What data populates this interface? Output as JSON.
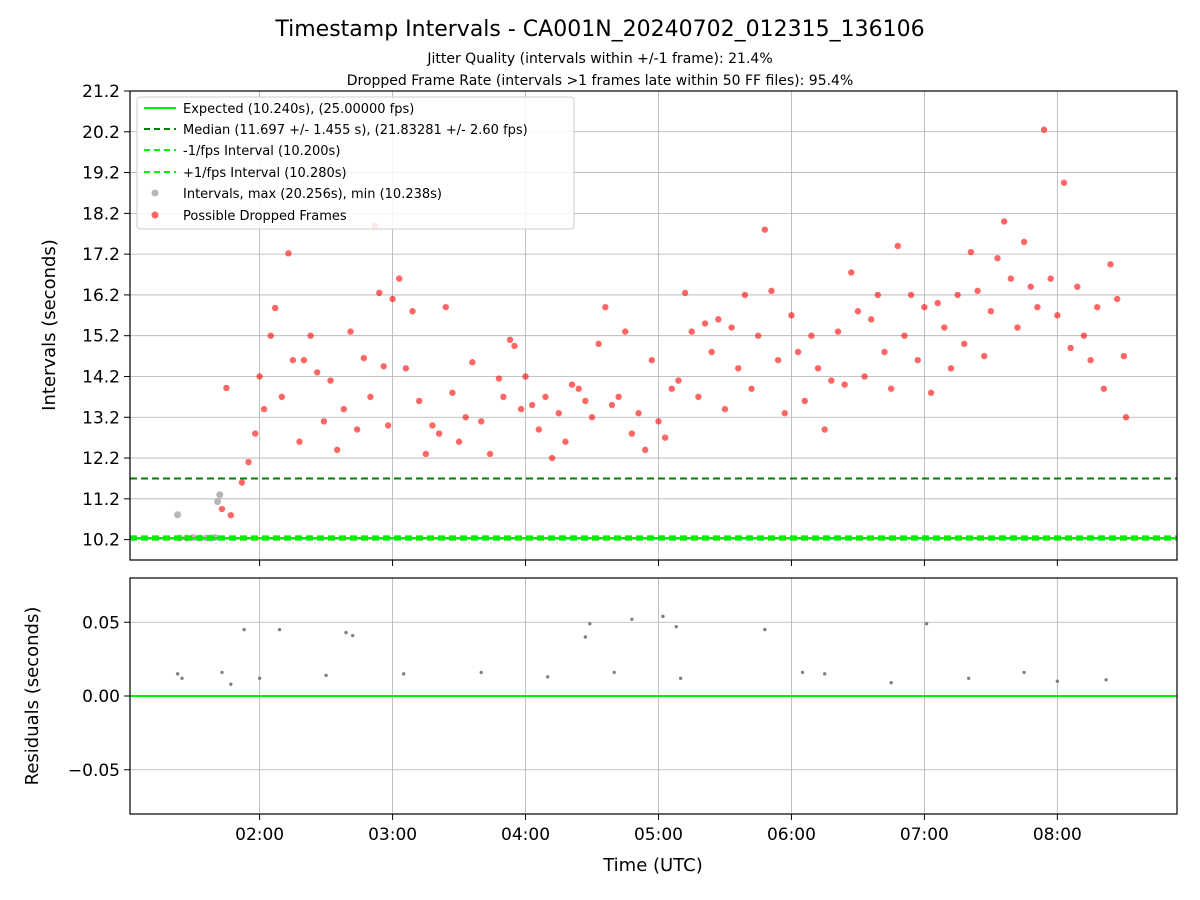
{
  "chart_data": [
    {
      "type": "scatter",
      "title": "Timestamp Intervals - CA001N_20240702_012315_136106",
      "subtitle_1": "Jitter Quality (intervals within +/-1 frame): 21.4%",
      "subtitle_2": "Dropped Frame Rate (intervals >1 frames late within 50 FF files): 95.4%",
      "xlabel": "",
      "ylabel": "Intervals (seconds)",
      "xlim": [
        "01:01:30",
        "08:54:00"
      ],
      "ylim": [
        9.7,
        21.2
      ],
      "yticks": [
        "10.2",
        "11.2",
        "12.2",
        "13.2",
        "14.2",
        "15.2",
        "16.2",
        "17.2",
        "18.2",
        "19.2",
        "20.2",
        "21.2"
      ],
      "grid": true,
      "legend_position": "upper-left",
      "legend": [
        "Expected (10.240s), (25.00000 fps)",
        "Median (11.697 +/- 1.455 s), (21.83281 +/- 2.60 fps)",
        "-1/fps Interval (10.200s)",
        "+1/fps Interval (10.280s)",
        "Intervals, max (20.256s), min (10.238s)",
        "Possible Dropped Frames"
      ],
      "reference_lines": [
        {
          "name": "Expected",
          "y": 10.24,
          "style": "solid",
          "color": "#00ee00"
        },
        {
          "name": "Median",
          "y": 11.697,
          "style": "dashed",
          "color": "#008000"
        },
        {
          "name": "-1/fps Interval",
          "y": 10.2,
          "style": "dashed",
          "color": "#00ee00"
        },
        {
          "name": "+1/fps Interval",
          "y": 10.28,
          "style": "dashed",
          "color": "#00ee00"
        }
      ],
      "series": [
        {
          "name": "Intervals, max (20.256s), min (10.238s)",
          "color": "#999999",
          "points": [
            {
              "x": "01:23",
              "y": 10.81
            },
            {
              "x": "01:24",
              "y": 10.24
            },
            {
              "x": "01:27",
              "y": 10.24
            },
            {
              "x": "01:30",
              "y": 10.25
            },
            {
              "x": "01:33",
              "y": 10.24
            },
            {
              "x": "01:36",
              "y": 10.24
            },
            {
              "x": "01:38",
              "y": 10.24
            },
            {
              "x": "01:40",
              "y": 10.25
            },
            {
              "x": "01:41",
              "y": 11.13
            },
            {
              "x": "01:42",
              "y": 11.3
            }
          ]
        },
        {
          "name": "Possible Dropped Frames",
          "color": "#ff0000",
          "points": [
            {
              "x": "01:45",
              "y": 13.92
            },
            {
              "x": "01:43",
              "y": 10.95
            },
            {
              "x": "01:47",
              "y": 10.8
            },
            {
              "x": "01:52",
              "y": 11.6
            },
            {
              "x": "01:55",
              "y": 12.1
            },
            {
              "x": "01:58",
              "y": 12.8
            },
            {
              "x": "02:00",
              "y": 14.2
            },
            {
              "x": "02:02",
              "y": 13.4
            },
            {
              "x": "02:05",
              "y": 15.2
            },
            {
              "x": "02:07",
              "y": 15.88
            },
            {
              "x": "02:10",
              "y": 13.7
            },
            {
              "x": "02:13",
              "y": 17.22
            },
            {
              "x": "02:15",
              "y": 14.6
            },
            {
              "x": "02:18",
              "y": 12.6
            },
            {
              "x": "02:20",
              "y": 14.6
            },
            {
              "x": "02:23",
              "y": 15.2
            },
            {
              "x": "02:26",
              "y": 14.3
            },
            {
              "x": "02:29",
              "y": 13.1
            },
            {
              "x": "02:32",
              "y": 14.1
            },
            {
              "x": "02:35",
              "y": 12.4
            },
            {
              "x": "02:38",
              "y": 13.4
            },
            {
              "x": "02:41",
              "y": 15.3
            },
            {
              "x": "02:44",
              "y": 12.9
            },
            {
              "x": "02:47",
              "y": 14.65
            },
            {
              "x": "02:50",
              "y": 13.7
            },
            {
              "x": "02:52",
              "y": 17.9
            },
            {
              "x": "02:54",
              "y": 16.25
            },
            {
              "x": "02:56",
              "y": 14.45
            },
            {
              "x": "02:58",
              "y": 13.0
            },
            {
              "x": "03:00",
              "y": 16.1
            },
            {
              "x": "03:03",
              "y": 16.6
            },
            {
              "x": "03:06",
              "y": 14.4
            },
            {
              "x": "03:09",
              "y": 15.8
            },
            {
              "x": "03:12",
              "y": 13.6
            },
            {
              "x": "03:15",
              "y": 12.3
            },
            {
              "x": "03:18",
              "y": 13.0
            },
            {
              "x": "03:21",
              "y": 12.8
            },
            {
              "x": "03:24",
              "y": 15.9
            },
            {
              "x": "03:27",
              "y": 13.8
            },
            {
              "x": "03:30",
              "y": 12.6
            },
            {
              "x": "03:33",
              "y": 13.2
            },
            {
              "x": "03:36",
              "y": 14.55
            },
            {
              "x": "03:40",
              "y": 13.1
            },
            {
              "x": "03:44",
              "y": 12.3
            },
            {
              "x": "03:48",
              "y": 14.15
            },
            {
              "x": "03:50",
              "y": 13.7
            },
            {
              "x": "03:53",
              "y": 15.1
            },
            {
              "x": "03:55",
              "y": 14.95
            },
            {
              "x": "03:58",
              "y": 13.4
            },
            {
              "x": "04:00",
              "y": 14.2
            },
            {
              "x": "04:03",
              "y": 13.5
            },
            {
              "x": "04:06",
              "y": 12.9
            },
            {
              "x": "04:09",
              "y": 13.7
            },
            {
              "x": "04:12",
              "y": 12.2
            },
            {
              "x": "04:15",
              "y": 13.3
            },
            {
              "x": "04:18",
              "y": 12.6
            },
            {
              "x": "04:21",
              "y": 14.0
            },
            {
              "x": "04:24",
              "y": 13.9
            },
            {
              "x": "04:27",
              "y": 13.6
            },
            {
              "x": "04:30",
              "y": 13.2
            },
            {
              "x": "04:33",
              "y": 15.0
            },
            {
              "x": "04:36",
              "y": 15.9
            },
            {
              "x": "04:39",
              "y": 13.5
            },
            {
              "x": "04:42",
              "y": 13.7
            },
            {
              "x": "04:45",
              "y": 15.3
            },
            {
              "x": "04:48",
              "y": 12.8
            },
            {
              "x": "04:51",
              "y": 13.3
            },
            {
              "x": "04:54",
              "y": 12.4
            },
            {
              "x": "04:57",
              "y": 14.6
            },
            {
              "x": "05:00",
              "y": 13.1
            },
            {
              "x": "05:03",
              "y": 12.7
            },
            {
              "x": "05:06",
              "y": 13.9
            },
            {
              "x": "05:09",
              "y": 14.1
            },
            {
              "x": "05:12",
              "y": 16.25
            },
            {
              "x": "05:15",
              "y": 15.3
            },
            {
              "x": "05:18",
              "y": 13.7
            },
            {
              "x": "05:21",
              "y": 15.5
            },
            {
              "x": "05:24",
              "y": 14.8
            },
            {
              "x": "05:27",
              "y": 15.6
            },
            {
              "x": "05:30",
              "y": 13.4
            },
            {
              "x": "05:33",
              "y": 15.4
            },
            {
              "x": "05:36",
              "y": 14.4
            },
            {
              "x": "05:39",
              "y": 16.2
            },
            {
              "x": "05:42",
              "y": 13.9
            },
            {
              "x": "05:45",
              "y": 15.2
            },
            {
              "x": "05:48",
              "y": 17.8
            },
            {
              "x": "05:51",
              "y": 16.3
            },
            {
              "x": "05:54",
              "y": 14.6
            },
            {
              "x": "05:57",
              "y": 13.3
            },
            {
              "x": "06:00",
              "y": 15.7
            },
            {
              "x": "06:03",
              "y": 14.8
            },
            {
              "x": "06:06",
              "y": 13.6
            },
            {
              "x": "06:09",
              "y": 15.2
            },
            {
              "x": "06:12",
              "y": 14.4
            },
            {
              "x": "06:15",
              "y": 12.9
            },
            {
              "x": "06:18",
              "y": 14.1
            },
            {
              "x": "06:21",
              "y": 15.3
            },
            {
              "x": "06:24",
              "y": 14.0
            },
            {
              "x": "06:27",
              "y": 16.75
            },
            {
              "x": "06:30",
              "y": 15.8
            },
            {
              "x": "06:33",
              "y": 14.2
            },
            {
              "x": "06:36",
              "y": 15.6
            },
            {
              "x": "06:39",
              "y": 16.2
            },
            {
              "x": "06:42",
              "y": 14.8
            },
            {
              "x": "06:45",
              "y": 13.9
            },
            {
              "x": "06:48",
              "y": 17.4
            },
            {
              "x": "06:51",
              "y": 15.2
            },
            {
              "x": "06:54",
              "y": 16.2
            },
            {
              "x": "06:57",
              "y": 14.6
            },
            {
              "x": "07:00",
              "y": 15.9
            },
            {
              "x": "07:03",
              "y": 13.8
            },
            {
              "x": "07:06",
              "y": 16.0
            },
            {
              "x": "07:09",
              "y": 15.4
            },
            {
              "x": "07:12",
              "y": 14.4
            },
            {
              "x": "07:15",
              "y": 16.2
            },
            {
              "x": "07:18",
              "y": 15.0
            },
            {
              "x": "07:21",
              "y": 17.25
            },
            {
              "x": "07:24",
              "y": 16.3
            },
            {
              "x": "07:27",
              "y": 14.7
            },
            {
              "x": "07:30",
              "y": 15.8
            },
            {
              "x": "07:33",
              "y": 17.1
            },
            {
              "x": "07:36",
              "y": 18.0
            },
            {
              "x": "07:39",
              "y": 16.6
            },
            {
              "x": "07:42",
              "y": 15.4
            },
            {
              "x": "07:45",
              "y": 17.5
            },
            {
              "x": "07:48",
              "y": 16.4
            },
            {
              "x": "07:51",
              "y": 15.9
            },
            {
              "x": "07:54",
              "y": 20.25
            },
            {
              "x": "07:57",
              "y": 16.6
            },
            {
              "x": "08:00",
              "y": 15.7
            },
            {
              "x": "08:03",
              "y": 18.95
            },
            {
              "x": "08:06",
              "y": 14.9
            },
            {
              "x": "08:09",
              "y": 16.4
            },
            {
              "x": "08:12",
              "y": 15.2
            },
            {
              "x": "08:15",
              "y": 14.6
            },
            {
              "x": "08:18",
              "y": 15.9
            },
            {
              "x": "08:21",
              "y": 13.9
            },
            {
              "x": "08:24",
              "y": 16.95
            },
            {
              "x": "08:27",
              "y": 16.1
            },
            {
              "x": "08:30",
              "y": 14.7
            },
            {
              "x": "08:31",
              "y": 13.2
            }
          ]
        }
      ]
    },
    {
      "type": "scatter",
      "xlabel": "Time (UTC)",
      "ylabel": "Residuals (seconds)",
      "xlim": [
        "01:01:30",
        "08:54:00"
      ],
      "ylim": [
        -0.08,
        0.08
      ],
      "xticks": [
        "02:00",
        "03:00",
        "04:00",
        "05:00",
        "06:00",
        "07:00",
        "08:00"
      ],
      "yticks": [
        "0.05",
        "0.00",
        "−0.05"
      ],
      "grid": true,
      "reference_lines": [
        {
          "y": 0.0,
          "style": "solid",
          "color": "#00ee00"
        }
      ],
      "series": [
        {
          "color": "#808080",
          "points": [
            {
              "x": "01:23",
              "y": 0.015
            },
            {
              "x": "01:25",
              "y": 0.012
            },
            {
              "x": "01:43",
              "y": 0.016
            },
            {
              "x": "01:47",
              "y": 0.008
            },
            {
              "x": "01:53",
              "y": 0.045
            },
            {
              "x": "02:09",
              "y": 0.045
            },
            {
              "x": "02:39",
              "y": 0.043
            },
            {
              "x": "02:42",
              "y": 0.041
            },
            {
              "x": "04:27",
              "y": 0.04
            },
            {
              "x": "04:29",
              "y": 0.049
            },
            {
              "x": "04:48",
              "y": 0.052
            },
            {
              "x": "05:02",
              "y": 0.054
            },
            {
              "x": "05:08",
              "y": 0.047
            },
            {
              "x": "05:48",
              "y": 0.045
            },
            {
              "x": "07:01",
              "y": 0.049
            },
            {
              "x": "02:00",
              "y": 0.012
            },
            {
              "x": "02:30",
              "y": 0.014
            },
            {
              "x": "03:05",
              "y": 0.015
            },
            {
              "x": "03:40",
              "y": 0.016
            },
            {
              "x": "04:10",
              "y": 0.013
            },
            {
              "x": "04:40",
              "y": 0.016
            },
            {
              "x": "05:10",
              "y": 0.012
            },
            {
              "x": "06:05",
              "y": 0.016
            },
            {
              "x": "06:15",
              "y": 0.015
            },
            {
              "x": "06:45",
              "y": 0.009
            },
            {
              "x": "07:20",
              "y": 0.012
            },
            {
              "x": "07:45",
              "y": 0.016
            },
            {
              "x": "08:00",
              "y": 0.01
            },
            {
              "x": "08:22",
              "y": 0.011
            }
          ]
        }
      ]
    }
  ]
}
